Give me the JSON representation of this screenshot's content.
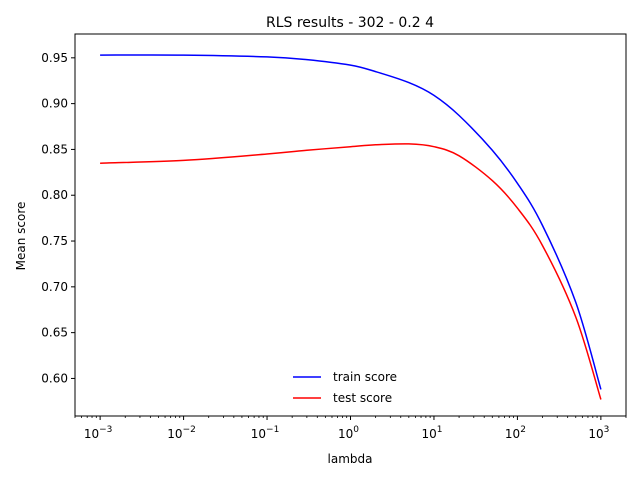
{
  "chart_data": {
    "type": "line",
    "title": "RLS results - 302 - 0.2 4",
    "xlabel": "lambda",
    "ylabel": "Mean score",
    "xscale": "log",
    "xlim": [
      0.0005,
      2000
    ],
    "ylim": [
      0.559,
      0.976
    ],
    "x_ticks": [
      {
        "value": 0.001,
        "base": "10",
        "exp": "−3"
      },
      {
        "value": 0.01,
        "base": "10",
        "exp": "−2"
      },
      {
        "value": 0.1,
        "base": "10",
        "exp": "−1"
      },
      {
        "value": 1,
        "base": "10",
        "exp": "0"
      },
      {
        "value": 10,
        "base": "10",
        "exp": "1"
      },
      {
        "value": 100,
        "base": "10",
        "exp": "2"
      },
      {
        "value": 1000,
        "base": "10",
        "exp": "3"
      }
    ],
    "y_ticks": [
      "0.60",
      "0.65",
      "0.70",
      "0.75",
      "0.80",
      "0.85",
      "0.90",
      "0.95"
    ],
    "grid": false,
    "legend_position": "lower-center",
    "series": [
      {
        "name": "train score",
        "color": "#0000ff",
        "x": [
          0.001,
          0.01,
          0.1,
          0.3,
          1,
          2,
          5,
          10,
          20,
          50,
          100,
          200,
          500,
          1000
        ],
        "y": [
          0.953,
          0.953,
          0.951,
          0.948,
          0.942,
          0.935,
          0.923,
          0.909,
          0.887,
          0.849,
          0.813,
          0.767,
          0.683,
          0.588
        ]
      },
      {
        "name": "test score",
        "color": "#ff0000",
        "x": [
          0.001,
          0.01,
          0.1,
          0.3,
          1,
          2,
          5,
          10,
          20,
          50,
          100,
          200,
          500,
          1000
        ],
        "y": [
          0.835,
          0.838,
          0.845,
          0.849,
          0.853,
          0.855,
          0.856,
          0.853,
          0.843,
          0.816,
          0.786,
          0.745,
          0.667,
          0.577
        ]
      }
    ]
  }
}
